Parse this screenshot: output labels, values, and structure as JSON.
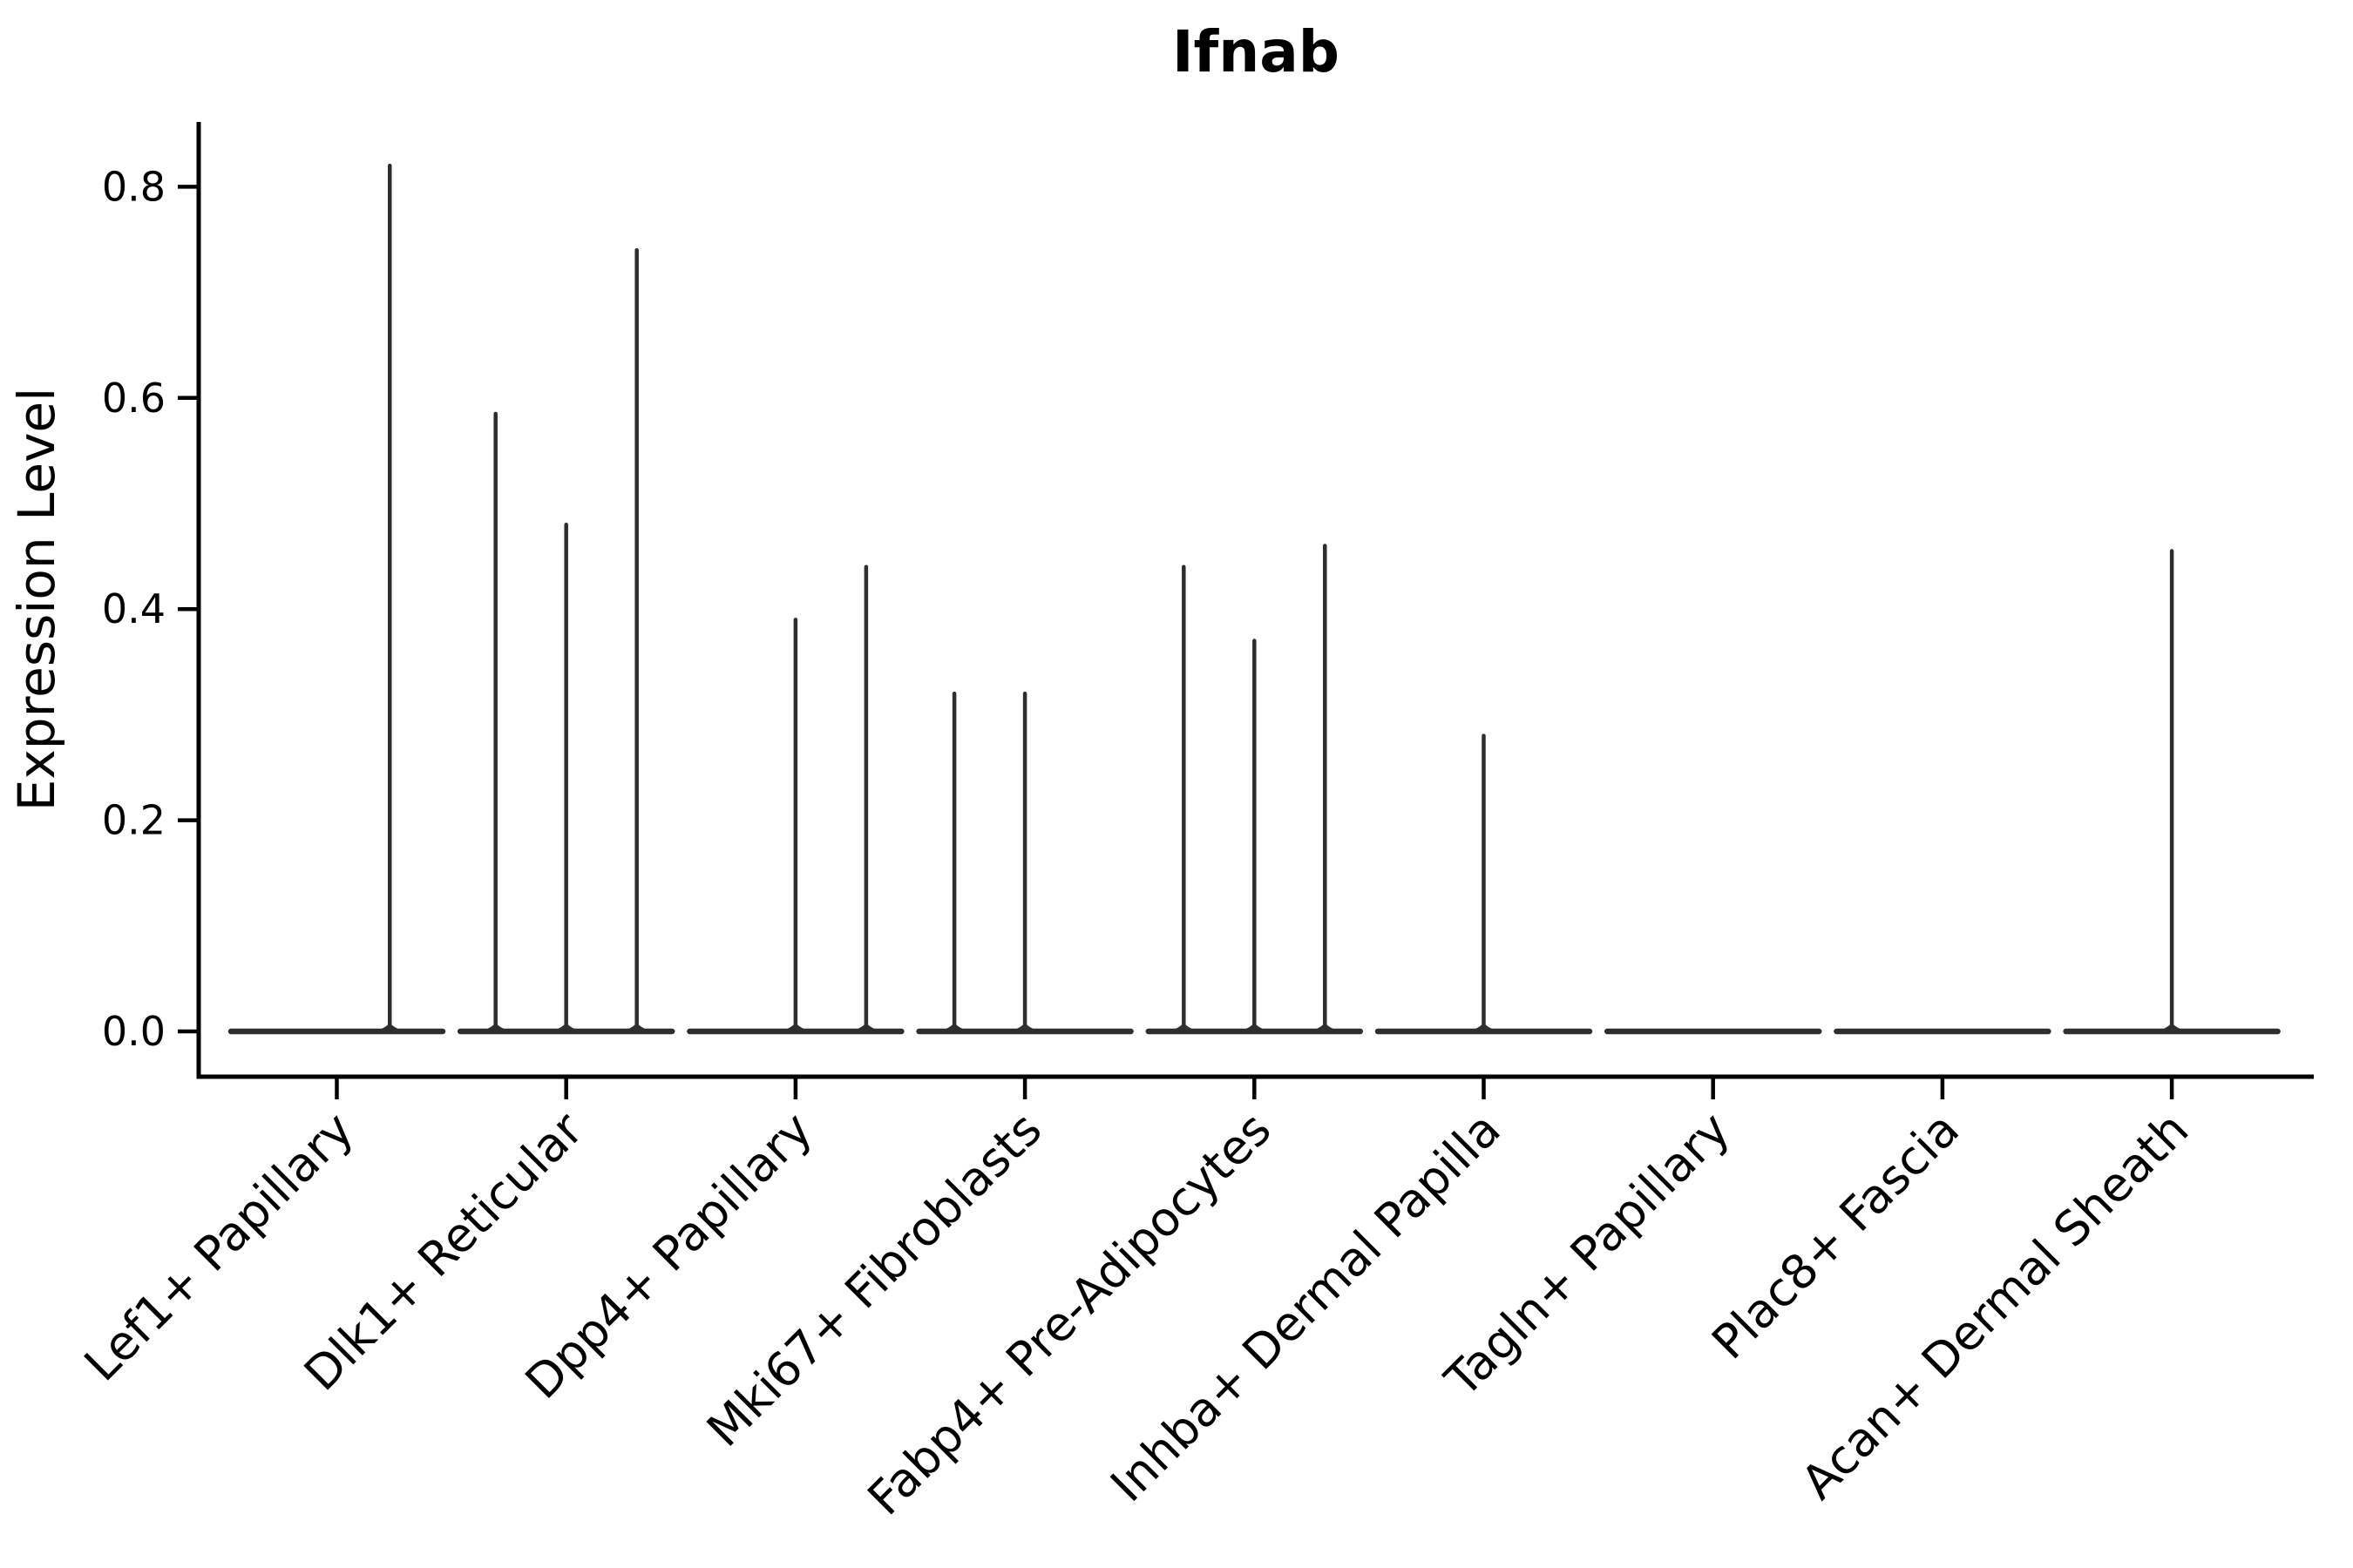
{
  "figure": {
    "background": "#ffffff"
  },
  "chart_data": {
    "type": "violin",
    "title": "Ifnab",
    "ylabel": "Expression Level",
    "xlabel": "",
    "yticks": [
      0.0,
      0.2,
      0.4,
      0.6,
      0.8
    ],
    "ytick_labels": [
      "0.0",
      "0.2",
      "0.4",
      "0.6",
      "0.8"
    ],
    "ylim": [
      -0.041,
      0.861
    ],
    "grid": false,
    "legend": "none",
    "x_tick_rotation_deg": 45,
    "axis_color": "#000000",
    "violin_color": "#2e2e2e",
    "note": "Violin plot of gene expression; each category holds up to 3 thin violins collapsed at 0 with narrow tails (spikes). 'pos' is the violin center as a fraction of the category span; 'max' is the tip value of the spike in Expression Level units.",
    "categories": [
      "Lef1+ Papillary",
      "Dlk1+ Reticular",
      "Dpp4+ Papillary",
      "Mki67+ Fibroblasts",
      "Fabp4+ Pre-Adipocytes",
      "Inhba+ Dermal Papilla",
      "Tagln+ Papillary",
      "Plac8+ Fascia",
      "Acan+ Dermal Sheath"
    ],
    "series": [
      {
        "category": "Lef1+ Papillary",
        "violins": [
          {
            "pos": 0.75,
            "max": 0.82
          }
        ]
      },
      {
        "category": "Dlk1+ Reticular",
        "violins": [
          {
            "pos": 0.1667,
            "max": 0.585
          },
          {
            "pos": 0.5,
            "max": 0.48
          },
          {
            "pos": 0.8333,
            "max": 0.74
          }
        ]
      },
      {
        "category": "Dpp4+ Papillary",
        "violins": [
          {
            "pos": 0.5,
            "max": 0.39
          },
          {
            "pos": 0.8333,
            "max": 0.44
          }
        ]
      },
      {
        "category": "Mki67+ Fibroblasts",
        "violins": [
          {
            "pos": 0.1667,
            "max": 0.32
          },
          {
            "pos": 0.5,
            "max": 0.32
          }
        ]
      },
      {
        "category": "Fabp4+ Pre-Adipocytes",
        "violins": [
          {
            "pos": 0.1667,
            "max": 0.44
          },
          {
            "pos": 0.5,
            "max": 0.37
          },
          {
            "pos": 0.8333,
            "max": 0.46
          }
        ]
      },
      {
        "category": "Inhba+ Dermal Papilla",
        "violins": [
          {
            "pos": 0.5,
            "max": 0.28
          }
        ]
      },
      {
        "category": "Tagln+ Papillary",
        "violins": []
      },
      {
        "category": "Plac8+ Fascia",
        "violins": []
      },
      {
        "category": "Acan+ Dermal Sheath",
        "violins": [
          {
            "pos": 0.5,
            "max": 0.455
          }
        ]
      }
    ]
  }
}
